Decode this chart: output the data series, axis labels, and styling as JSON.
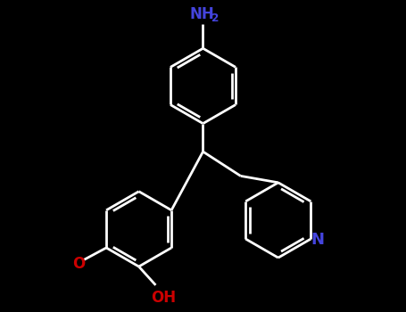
{
  "bg_color": "#000000",
  "line_color": "#ffffff",
  "nh2_color": "#4444dd",
  "oh_color": "#cc0000",
  "o_color": "#cc0000",
  "n_color": "#4444dd",
  "lw": 2.0,
  "fs": 12,
  "figsize": [
    4.55,
    3.5
  ],
  "dpi": 100,
  "xlim": [
    0,
    9
  ],
  "ylim": [
    0,
    7
  ]
}
